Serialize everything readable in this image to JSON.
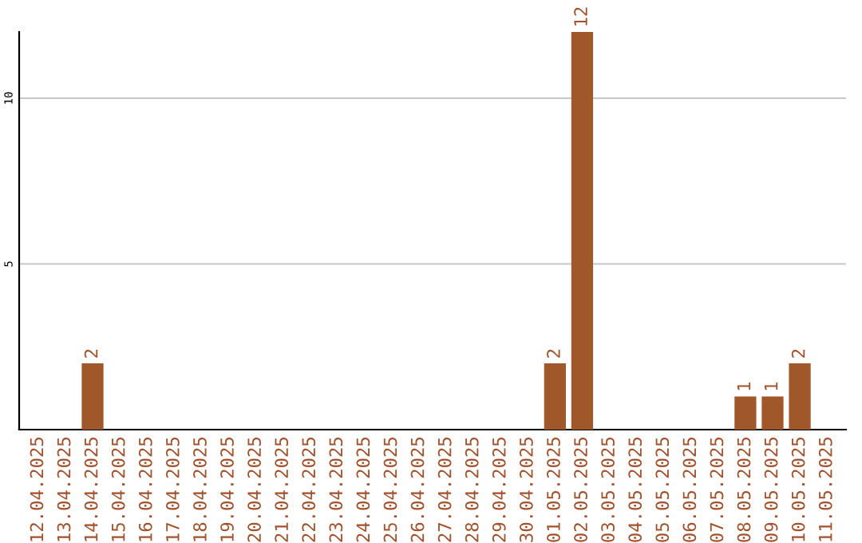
{
  "chart_data": {
    "type": "bar",
    "categories": [
      "12.04.2025",
      "13.04.2025",
      "14.04.2025",
      "15.04.2025",
      "16.04.2025",
      "17.04.2025",
      "18.04.2025",
      "19.04.2025",
      "20.04.2025",
      "21.04.2025",
      "22.04.2025",
      "23.04.2025",
      "24.04.2025",
      "25.04.2025",
      "26.04.2025",
      "27.04.2025",
      "28.04.2025",
      "29.04.2025",
      "30.04.2025",
      "01.05.2025",
      "02.05.2025",
      "03.05.2025",
      "04.05.2025",
      "05.05.2025",
      "06.05.2025",
      "07.05.2025",
      "08.05.2025",
      "09.05.2025",
      "10.05.2025",
      "11.05.2025"
    ],
    "values": [
      0,
      0,
      2,
      0,
      0,
      0,
      0,
      0,
      0,
      0,
      0,
      0,
      0,
      0,
      0,
      0,
      0,
      0,
      0,
      2,
      12,
      0,
      0,
      0,
      0,
      0,
      1,
      1,
      2,
      0
    ],
    "value_labels": [
      null,
      null,
      "2",
      null,
      null,
      null,
      null,
      null,
      null,
      null,
      null,
      null,
      null,
      null,
      null,
      null,
      null,
      null,
      null,
      "2",
      "12",
      null,
      null,
      null,
      null,
      null,
      "1",
      "1",
      "2",
      null
    ],
    "color": "#a0582a",
    "ylim": [
      0,
      12
    ],
    "yticks": [
      5,
      10
    ],
    "grid": "y"
  }
}
